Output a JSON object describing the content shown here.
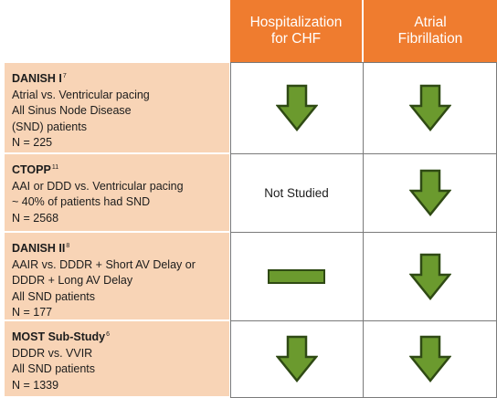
{
  "header": {
    "col1_line1": "Hospitalization",
    "col1_line2": "for CHF",
    "col2_line1": "Atrial",
    "col2_line2": "Fibrillation"
  },
  "rows": [
    {
      "name": "DANISH I",
      "ref": "7",
      "lines": [
        "Atrial vs. Ventricular pacing",
        "All Sinus Node Disease",
        "(SND) patients",
        "N = 225"
      ],
      "chf": "decrease",
      "af": "decrease"
    },
    {
      "name": "CTOPP",
      "ref": "11",
      "lines": [
        "AAI or DDD vs. Ventricular pacing",
        "~ 40% of patients had SND",
        "N = 2568"
      ],
      "chf_text": "Not Studied",
      "af": "decrease"
    },
    {
      "name": "DANISH II",
      "ref": "8",
      "lines": [
        "AAIR vs. DDDR + Short AV Delay or",
        "DDDR + Long AV Delay",
        "All SND patients",
        "N = 177"
      ],
      "chf": "no-change",
      "af": "decrease"
    },
    {
      "name": "MOST Sub-Study",
      "ref": "6",
      "lines": [
        "DDDR vs. VVIR",
        "All SND patients",
        "N = 1339"
      ],
      "chf": "decrease",
      "af": "decrease"
    }
  ],
  "colors": {
    "header_bg": "#ef7c2f",
    "study_bg": "#f8d4b6",
    "arrow_fill": "#6b9a2e",
    "arrow_stroke": "#2f4a14"
  }
}
